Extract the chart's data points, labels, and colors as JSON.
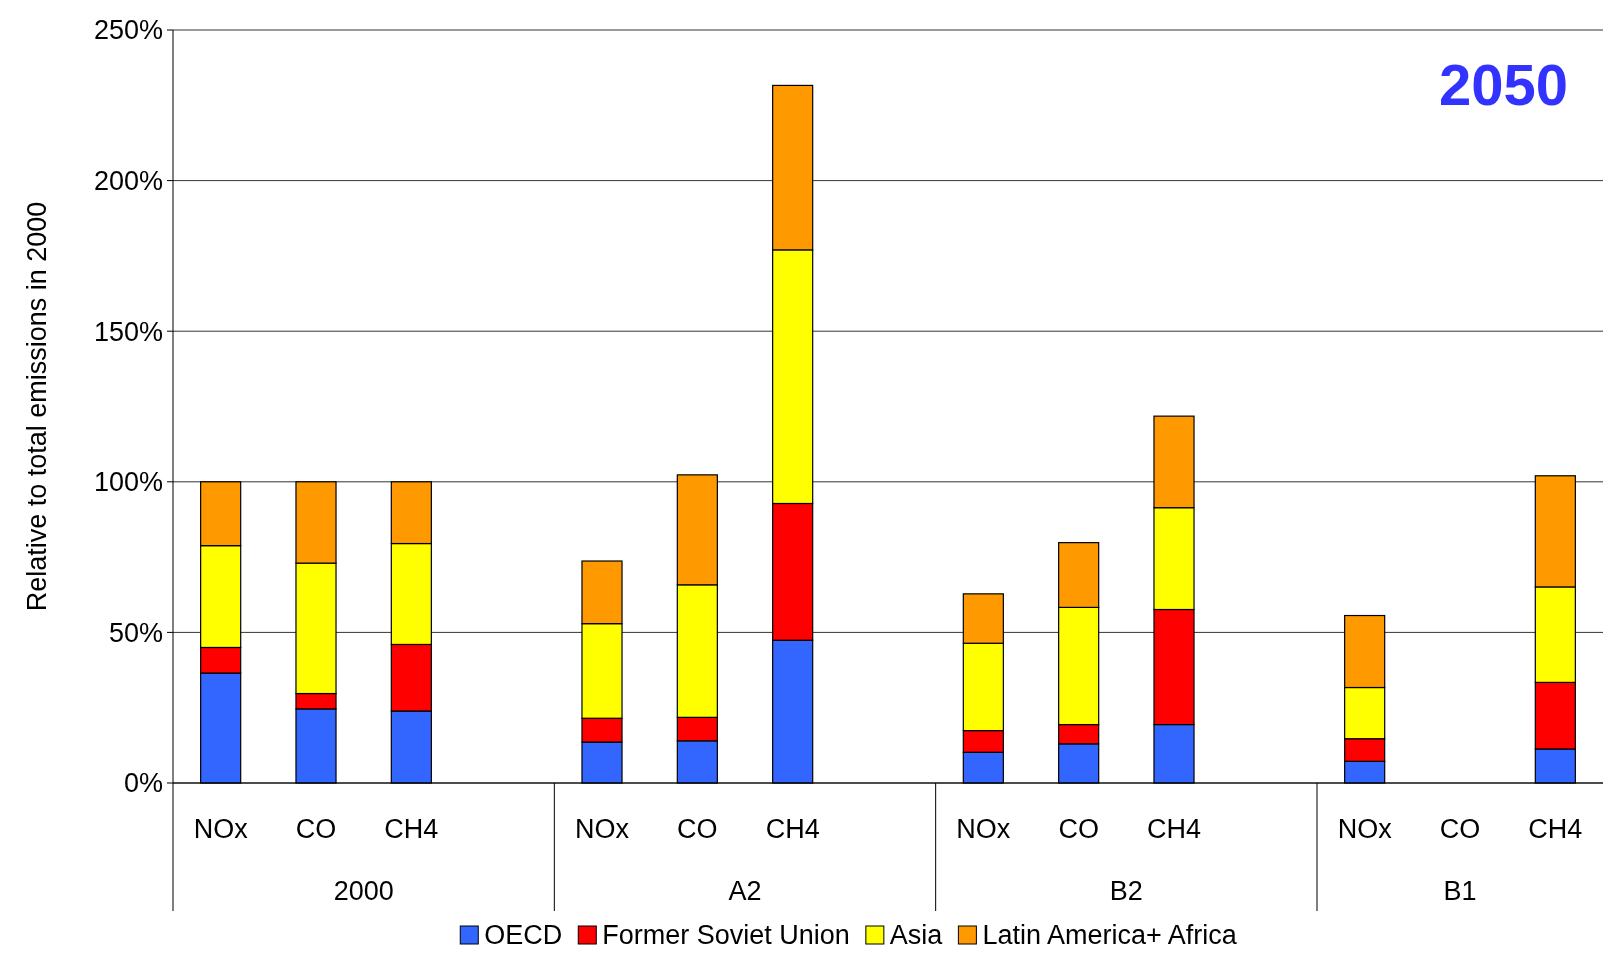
{
  "chart_data": {
    "type": "bar",
    "title": "2050",
    "ylabel": "Relative to total emissions in 2000",
    "stacked": true,
    "grid": "y",
    "legend": "bottom",
    "categories": [
      "NOx",
      "CO",
      "CH4",
      null,
      "NOx",
      "CO",
      "CH4",
      null,
      "NOx",
      "CO",
      "CH4",
      null,
      "NOx",
      "CO",
      "CH4"
    ],
    "annotations": [
      "2000",
      "A2",
      "B2",
      "B1"
    ],
    "ylim": [
      0,
      250
    ],
    "yticks": [
      {
        "value": 0,
        "label": "0%"
      },
      {
        "value": 50,
        "label": "50%"
      },
      {
        "value": 100,
        "label": "100%"
      },
      {
        "value": 150,
        "label": "150%"
      },
      {
        "value": 200,
        "label": "200%"
      },
      {
        "value": 250,
        "label": "250%"
      }
    ],
    "series": [
      {
        "name": "OECD",
        "color": "#3366ff",
        "values": [
          36.5,
          24.6,
          23.9,
          null,
          13.6,
          14,
          47.4,
          null,
          10.2,
          13,
          19.4,
          null,
          7.2,
          null,
          11.3
        ]
      },
      {
        "name": "Former Soviet Union",
        "color": "#ff0000",
        "values": [
          8.5,
          5.1,
          22.1,
          null,
          7.9,
          7.8,
          45.4,
          null,
          7.2,
          6.4,
          38.2,
          null,
          7.5,
          null,
          22.1
        ]
      },
      {
        "name": "Asia",
        "color": "#ffff00",
        "values": [
          33.8,
          43.3,
          33.5,
          null,
          31.4,
          44,
          84.2,
          null,
          29,
          38.9,
          33.8,
          null,
          17,
          null,
          31.7
        ]
      },
      {
        "name": "Latin America+ Africa",
        "color": "#ff9900",
        "values": [
          21.2,
          27,
          20.5,
          null,
          20.8,
          36.5,
          54.6,
          null,
          16.4,
          21.5,
          30.4,
          null,
          23.9,
          null,
          36.9
        ]
      }
    ]
  }
}
